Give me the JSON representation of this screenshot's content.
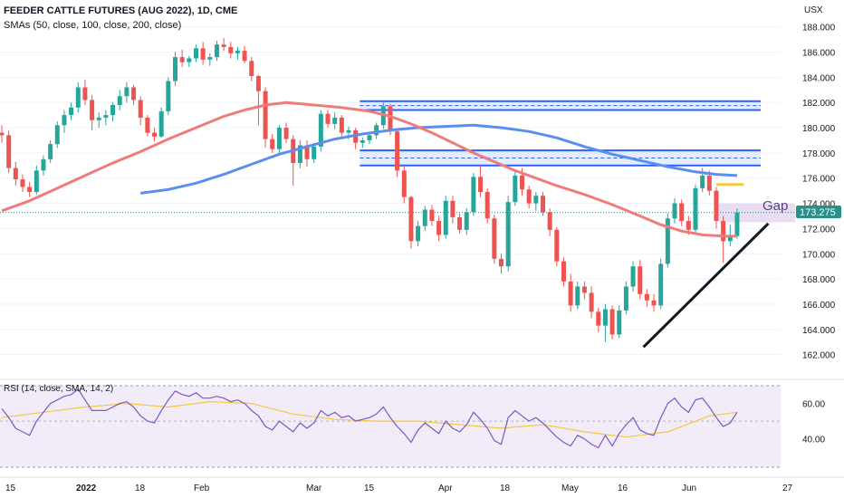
{
  "header": {
    "title": "FEEDER CATTLE FUTURES (AUG 2022), 1D, CME",
    "subtitle": "SMAs (50, close, 100, close, 200, close)",
    "currency": "USX"
  },
  "rsi": {
    "label": "RSI (14, close, SMA, 14, 2)",
    "ticks": [
      "60.00",
      "40.00"
    ]
  },
  "colors": {
    "up": "#26a69a",
    "down": "#ef5350",
    "sma50": "#f07b7b",
    "sma100": "#5b8ef0",
    "zone_fill": "#dbe6fb",
    "zone_line": "#2962ff",
    "gap_fill": "#e6d9f2",
    "rsi_line": "#7e57c2",
    "rsi_ma": "#f5c842",
    "rsi_band": "#f1ecf8"
  },
  "annotations": {
    "gap_label": "Gap",
    "price_tag": "173.275"
  },
  "chart_data": {
    "type": "candlestick",
    "title": "FEEDER CATTLE FUTURES (AUG 2022), 1D, CME",
    "y_ticks": [
      "188.000",
      "186.000",
      "184.000",
      "182.000",
      "180.000",
      "178.000",
      "176.000",
      "174.000",
      "172.000",
      "170.000",
      "168.000",
      "166.000",
      "164.000",
      "162.000"
    ],
    "ylim": [
      160.6,
      189.3
    ],
    "x_ticks": [
      "15",
      "2022",
      "18",
      "Feb",
      "Mar",
      "15",
      "Apr",
      "18",
      "May",
      "16",
      "Jun",
      "27"
    ],
    "last_price": 173.275,
    "ohlc": [
      [
        179.6,
        180.2,
        178.8,
        179.4
      ],
      [
        179.4,
        179.8,
        176.4,
        176.8
      ],
      [
        176.8,
        177.3,
        175.4,
        175.9
      ],
      [
        175.9,
        176.3,
        174.9,
        175.3
      ],
      [
        175.3,
        175.7,
        174.5,
        174.9
      ],
      [
        174.9,
        177.0,
        174.7,
        176.6
      ],
      [
        176.6,
        177.8,
        176.2,
        177.5
      ],
      [
        177.5,
        179.0,
        177.2,
        178.7
      ],
      [
        178.7,
        180.5,
        178.4,
        180.2
      ],
      [
        180.2,
        181.4,
        179.6,
        181.0
      ],
      [
        181.0,
        182.0,
        180.6,
        181.6
      ],
      [
        181.6,
        183.6,
        181.2,
        183.2
      ],
      [
        183.2,
        183.8,
        181.8,
        182.2
      ],
      [
        182.2,
        182.6,
        179.8,
        180.6
      ],
      [
        180.6,
        181.2,
        180.0,
        180.8
      ],
      [
        180.8,
        181.4,
        180.2,
        181.0
      ],
      [
        181.0,
        182.0,
        180.5,
        181.8
      ],
      [
        181.8,
        183.0,
        181.4,
        182.5
      ],
      [
        182.5,
        183.6,
        182.0,
        183.2
      ],
      [
        183.2,
        183.4,
        181.8,
        182.2
      ],
      [
        182.2,
        182.5,
        180.2,
        180.8
      ],
      [
        180.8,
        181.0,
        179.3,
        179.6
      ],
      [
        179.6,
        180.0,
        178.9,
        179.3
      ],
      [
        179.3,
        181.6,
        179.2,
        181.3
      ],
      [
        181.3,
        184.0,
        181.0,
        183.7
      ],
      [
        183.7,
        186.0,
        183.3,
        185.6
      ],
      [
        185.6,
        186.2,
        184.8,
        185.2
      ],
      [
        185.2,
        185.7,
        184.8,
        185.5
      ],
      [
        185.5,
        186.6,
        185.2,
        186.3
      ],
      [
        186.3,
        186.8,
        185.0,
        185.4
      ],
      [
        185.4,
        185.9,
        184.9,
        185.6
      ],
      [
        185.6,
        186.9,
        185.3,
        186.6
      ],
      [
        186.6,
        187.1,
        186.1,
        186.4
      ],
      [
        186.4,
        186.8,
        185.5,
        185.9
      ],
      [
        185.9,
        186.4,
        185.4,
        186.1
      ],
      [
        186.1,
        186.5,
        185.1,
        185.3
      ],
      [
        185.3,
        185.6,
        183.7,
        184.1
      ],
      [
        184.1,
        184.2,
        180.2,
        182.9
      ],
      [
        182.9,
        183.2,
        178.4,
        179.1
      ],
      [
        179.1,
        179.5,
        178.0,
        178.3
      ],
      [
        178.3,
        180.2,
        178.0,
        180.0
      ],
      [
        180.0,
        180.4,
        178.8,
        179.1
      ],
      [
        179.1,
        179.4,
        175.4,
        177.2
      ],
      [
        177.2,
        179.0,
        176.8,
        178.6
      ],
      [
        178.6,
        179.0,
        176.9,
        177.5
      ],
      [
        177.5,
        178.8,
        177.2,
        178.5
      ],
      [
        178.5,
        181.4,
        178.1,
        181.1
      ],
      [
        181.1,
        181.4,
        180.0,
        180.3
      ],
      [
        180.3,
        181.2,
        179.9,
        180.8
      ],
      [
        180.8,
        181.0,
        179.3,
        179.6
      ],
      [
        179.6,
        180.1,
        179.1,
        179.8
      ],
      [
        179.8,
        180.0,
        178.3,
        178.8
      ],
      [
        178.8,
        179.2,
        178.4,
        179.0
      ],
      [
        179.0,
        179.6,
        178.7,
        179.4
      ],
      [
        179.4,
        180.4,
        179.1,
        180.2
      ],
      [
        180.2,
        182.0,
        179.9,
        181.7
      ],
      [
        181.7,
        181.9,
        179.4,
        179.7
      ],
      [
        179.7,
        179.9,
        176.1,
        176.6
      ],
      [
        176.6,
        176.9,
        174.0,
        174.5
      ],
      [
        174.5,
        174.6,
        170.4,
        171.0
      ],
      [
        171.0,
        172.6,
        170.6,
        172.2
      ],
      [
        172.2,
        173.8,
        171.8,
        173.5
      ],
      [
        173.5,
        173.9,
        172.2,
        172.6
      ],
      [
        172.6,
        173.0,
        171.0,
        171.5
      ],
      [
        171.5,
        174.6,
        171.2,
        174.2
      ],
      [
        174.2,
        174.6,
        172.4,
        172.9
      ],
      [
        172.9,
        173.2,
        171.6,
        171.9
      ],
      [
        171.9,
        173.6,
        171.5,
        173.3
      ],
      [
        173.3,
        176.4,
        173.0,
        176.1
      ],
      [
        176.1,
        177.0,
        174.5,
        174.9
      ],
      [
        174.9,
        175.2,
        172.4,
        172.8
      ],
      [
        172.8,
        173.1,
        169.2,
        169.6
      ],
      [
        169.6,
        170.0,
        168.4,
        169.0
      ],
      [
        169.0,
        174.6,
        168.6,
        174.1
      ],
      [
        174.1,
        176.6,
        173.8,
        176.2
      ],
      [
        176.2,
        176.8,
        174.6,
        175.1
      ],
      [
        175.1,
        175.4,
        173.6,
        174.0
      ],
      [
        174.0,
        174.9,
        173.4,
        174.6
      ],
      [
        174.6,
        174.9,
        173.0,
        173.3
      ],
      [
        173.3,
        173.6,
        171.4,
        171.9
      ],
      [
        171.9,
        172.1,
        169.0,
        169.4
      ],
      [
        169.4,
        169.7,
        167.4,
        167.8
      ],
      [
        167.8,
        168.4,
        165.4,
        165.9
      ],
      [
        165.9,
        167.8,
        165.6,
        167.4
      ],
      [
        167.4,
        167.8,
        166.4,
        166.9
      ],
      [
        166.9,
        167.4,
        164.9,
        165.4
      ],
      [
        165.4,
        165.7,
        163.8,
        164.3
      ],
      [
        164.3,
        166.0,
        163.0,
        165.6
      ],
      [
        165.6,
        165.9,
        163.2,
        163.6
      ],
      [
        163.6,
        165.9,
        163.3,
        165.5
      ],
      [
        165.5,
        167.8,
        165.2,
        167.4
      ],
      [
        167.4,
        169.4,
        167.0,
        169.0
      ],
      [
        169.0,
        169.5,
        166.4,
        166.8
      ],
      [
        166.8,
        167.2,
        165.8,
        166.3
      ],
      [
        166.3,
        166.8,
        165.4,
        165.9
      ],
      [
        165.9,
        169.6,
        165.6,
        169.2
      ],
      [
        169.2,
        173.2,
        168.9,
        172.8
      ],
      [
        172.8,
        174.4,
        172.4,
        174.0
      ],
      [
        174.0,
        174.3,
        172.2,
        172.6
      ],
      [
        172.6,
        173.0,
        171.5,
        171.9
      ],
      [
        171.9,
        175.5,
        171.7,
        175.2
      ],
      [
        175.2,
        176.8,
        174.9,
        176.2
      ],
      [
        176.2,
        176.6,
        174.6,
        175.0
      ],
      [
        175.0,
        175.3,
        172.0,
        172.6
      ],
      [
        172.6,
        173.0,
        169.3,
        171.0
      ],
      [
        171.0,
        172.3,
        170.6,
        171.4
      ],
      [
        171.4,
        173.6,
        171.2,
        173.275
      ]
    ],
    "sma50": [
      [
        0,
        173.4
      ],
      [
        4,
        174.2
      ],
      [
        8,
        175.2
      ],
      [
        12,
        176.2
      ],
      [
        16,
        177.2
      ],
      [
        20,
        178.1
      ],
      [
        24,
        179.1
      ],
      [
        28,
        180.0
      ],
      [
        32,
        180.9
      ],
      [
        35,
        181.4
      ],
      [
        38,
        181.8
      ],
      [
        41,
        182.0
      ],
      [
        45,
        181.8
      ],
      [
        49,
        181.6
      ],
      [
        53,
        181.3
      ],
      [
        56,
        180.9
      ],
      [
        59,
        180.3
      ],
      [
        62,
        179.6
      ],
      [
        65,
        178.8
      ],
      [
        68,
        178.0
      ],
      [
        71,
        177.3
      ],
      [
        74,
        176.6
      ],
      [
        77,
        176.0
      ],
      [
        80,
        175.4
      ],
      [
        84,
        174.7
      ],
      [
        88,
        173.9
      ],
      [
        92,
        173.0
      ],
      [
        95,
        172.3
      ],
      [
        98,
        171.8
      ],
      [
        101,
        171.5
      ],
      [
        104,
        171.4
      ],
      [
        106,
        171.4
      ]
    ],
    "sma100": [
      [
        20,
        174.8
      ],
      [
        24,
        175.1
      ],
      [
        28,
        175.6
      ],
      [
        32,
        176.3
      ],
      [
        36,
        177.1
      ],
      [
        40,
        177.9
      ],
      [
        44,
        178.5
      ],
      [
        48,
        179.1
      ],
      [
        52,
        179.5
      ],
      [
        56,
        179.8
      ],
      [
        60,
        180.0
      ],
      [
        64,
        180.1
      ],
      [
        68,
        180.2
      ],
      [
        72,
        180.0
      ],
      [
        76,
        179.7
      ],
      [
        80,
        179.2
      ],
      [
        84,
        178.5
      ],
      [
        88,
        177.9
      ],
      [
        92,
        177.4
      ],
      [
        96,
        176.9
      ],
      [
        100,
        176.5
      ],
      [
        103,
        176.3
      ],
      [
        106,
        176.2
      ]
    ],
    "zones": [
      {
        "x_start": 52,
        "x_end": 109,
        "low": 181.4,
        "high": 182.1,
        "mid": 181.75
      },
      {
        "x_start": 52,
        "x_end": 109,
        "low": 177.0,
        "high": 178.2,
        "mid": 177.6
      }
    ],
    "gap": {
      "x_start": 103,
      "x_end": 110,
      "low": 172.5,
      "high": 174.0
    },
    "resistance_tick": {
      "x_start": 103,
      "x_end": 107,
      "y": 175.5
    },
    "trendline": [
      [
        92.5,
        162.6
      ],
      [
        110.5,
        172.4
      ]
    ],
    "rsi_values": [
      57,
      52,
      46,
      44,
      42,
      50,
      55,
      60,
      62,
      64,
      65,
      68,
      62,
      56,
      56,
      56,
      58,
      60,
      61,
      58,
      53,
      50,
      49,
      56,
      62,
      67,
      65,
      64,
      66,
      63,
      63,
      64,
      63,
      61,
      62,
      60,
      56,
      53,
      47,
      45,
      50,
      47,
      44,
      49,
      46,
      49,
      56,
      53,
      55,
      52,
      53,
      50,
      51,
      52,
      54,
      58,
      52,
      47,
      43,
      38,
      45,
      49,
      46,
      43,
      50,
      46,
      44,
      48,
      55,
      51,
      46,
      39,
      37,
      52,
      56,
      53,
      50,
      52,
      49,
      45,
      41,
      38,
      36,
      42,
      40,
      37,
      35,
      42,
      36,
      43,
      48,
      52,
      45,
      43,
      42,
      52,
      60,
      63,
      58,
      55,
      62,
      63,
      58,
      52,
      47,
      49,
      55
    ],
    "rsi_ma": [
      [
        0,
        52
      ],
      [
        6,
        55
      ],
      [
        12,
        58
      ],
      [
        18,
        60
      ],
      [
        24,
        58
      ],
      [
        30,
        61
      ],
      [
        36,
        60
      ],
      [
        42,
        54
      ],
      [
        48,
        51
      ],
      [
        54,
        50
      ],
      [
        60,
        50
      ],
      [
        66,
        48
      ],
      [
        72,
        46
      ],
      [
        78,
        48
      ],
      [
        84,
        44
      ],
      [
        90,
        41
      ],
      [
        96,
        44
      ],
      [
        102,
        53
      ],
      [
        106,
        55
      ]
    ],
    "rsi_ylim": [
      24,
      70
    ]
  }
}
